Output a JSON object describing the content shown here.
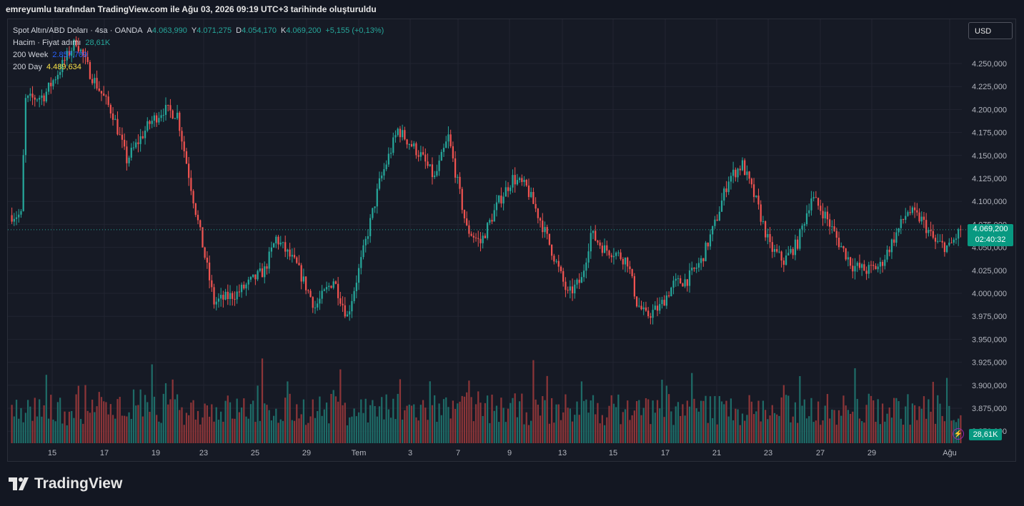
{
  "caption": "emreyumlu tarafından TradingView.com ile Ağu 03, 2026 09:19 UTC+3 tarihinde oluşturuldu",
  "brand": "TradingView",
  "currency_button": "USD",
  "legend": {
    "symbol": "Spot Altın/ABD Doları · 4sa · OANDA",
    "o_label": "A",
    "o_value": "4.063,990",
    "h_label": "Y",
    "h_value": "4.071,275",
    "l_label": "D",
    "l_value": "4.054,170",
    "c_label": "K",
    "c_value": "4.069,200",
    "change": "+5,155 (+0,13%)",
    "volume_label": "Hacim · Fiyat adımı",
    "volume_value": "28,61K",
    "ma_week_label": "200 Week",
    "ma_week_value": "2.857,709",
    "ma_day_label": "200 Day",
    "ma_day_value": "4.489,634"
  },
  "price_tag": {
    "price": "4.069,200",
    "countdown": "02:40:32"
  },
  "volume_tag": "28,61K",
  "colors": {
    "up": "#26a69a",
    "down": "#ef5350",
    "vol_up": "#1e6b67",
    "vol_down": "#8b3538",
    "grid": "#212431",
    "bg": "#161a25"
  },
  "chart_data": {
    "type": "candlestick",
    "y_ticks": [
      "4.250,000",
      "4.225,000",
      "4.200,000",
      "4.175,000",
      "4.150,000",
      "4.125,000",
      "4.100,000",
      "4.075,000",
      "4.050,000",
      "4.025,000",
      "4.000,000",
      "3.975,000",
      "3.950,000",
      "3.925,000",
      "3.900,000",
      "3.875,000",
      "3.850,000"
    ],
    "y_tick_values": [
      4250,
      4225,
      4200,
      4175,
      4150,
      4125,
      4100,
      4075,
      4050,
      4025,
      4000,
      3975,
      3950,
      3925,
      3900,
      3875,
      3850
    ],
    "ylim": [
      3840,
      4290
    ],
    "x_ticks": [
      "15",
      "17",
      "19",
      "23",
      "25",
      "29",
      "Tem",
      "3",
      "7",
      "9",
      "13",
      "15",
      "17",
      "21",
      "23",
      "27",
      "29",
      "Ağu"
    ],
    "last_price": 4069.2,
    "key_points": [
      {
        "x": 0,
        "price": 4085
      },
      {
        "x": 4,
        "price": 4085
      },
      {
        "x": 6,
        "price": 4210
      },
      {
        "x": 14,
        "price": 4215
      },
      {
        "x": 20,
        "price": 4240
      },
      {
        "x": 28,
        "price": 4275
      },
      {
        "x": 34,
        "price": 4240
      },
      {
        "x": 44,
        "price": 4195
      },
      {
        "x": 50,
        "price": 4145
      },
      {
        "x": 60,
        "price": 4185
      },
      {
        "x": 66,
        "price": 4200
      },
      {
        "x": 72,
        "price": 4195
      },
      {
        "x": 80,
        "price": 4090
      },
      {
        "x": 88,
        "price": 3990
      },
      {
        "x": 98,
        "price": 4000
      },
      {
        "x": 110,
        "price": 4025
      },
      {
        "x": 115,
        "price": 4060
      },
      {
        "x": 124,
        "price": 4030
      },
      {
        "x": 132,
        "price": 3985
      },
      {
        "x": 140,
        "price": 4015
      },
      {
        "x": 146,
        "price": 3975
      },
      {
        "x": 152,
        "price": 4035
      },
      {
        "x": 160,
        "price": 4120
      },
      {
        "x": 168,
        "price": 4178
      },
      {
        "x": 178,
        "price": 4150
      },
      {
        "x": 184,
        "price": 4125
      },
      {
        "x": 190,
        "price": 4170
      },
      {
        "x": 198,
        "price": 4070
      },
      {
        "x": 204,
        "price": 4055
      },
      {
        "x": 212,
        "price": 4100
      },
      {
        "x": 218,
        "price": 4125
      },
      {
        "x": 224,
        "price": 4115
      },
      {
        "x": 230,
        "price": 4080
      },
      {
        "x": 236,
        "price": 4040
      },
      {
        "x": 242,
        "price": 3998
      },
      {
        "x": 248,
        "price": 4015
      },
      {
        "x": 252,
        "price": 4065
      },
      {
        "x": 258,
        "price": 4048
      },
      {
        "x": 262,
        "price": 4045
      },
      {
        "x": 268,
        "price": 4035
      },
      {
        "x": 272,
        "price": 3990
      },
      {
        "x": 276,
        "price": 3975
      },
      {
        "x": 282,
        "price": 3985
      },
      {
        "x": 288,
        "price": 4010
      },
      {
        "x": 294,
        "price": 4015
      },
      {
        "x": 300,
        "price": 4035
      },
      {
        "x": 306,
        "price": 4075
      },
      {
        "x": 312,
        "price": 4125
      },
      {
        "x": 318,
        "price": 4140
      },
      {
        "x": 324,
        "price": 4100
      },
      {
        "x": 330,
        "price": 4050
      },
      {
        "x": 336,
        "price": 4035
      },
      {
        "x": 342,
        "price": 4055
      },
      {
        "x": 348,
        "price": 4105
      },
      {
        "x": 354,
        "price": 4085
      },
      {
        "x": 360,
        "price": 4055
      },
      {
        "x": 366,
        "price": 4030
      },
      {
        "x": 372,
        "price": 4025
      },
      {
        "x": 378,
        "price": 4030
      },
      {
        "x": 384,
        "price": 4060
      },
      {
        "x": 390,
        "price": 4090
      },
      {
        "x": 396,
        "price": 4080
      },
      {
        "x": 402,
        "price": 4055
      },
      {
        "x": 408,
        "price": 4050
      },
      {
        "x": 413,
        "price": 4069
      }
    ]
  }
}
